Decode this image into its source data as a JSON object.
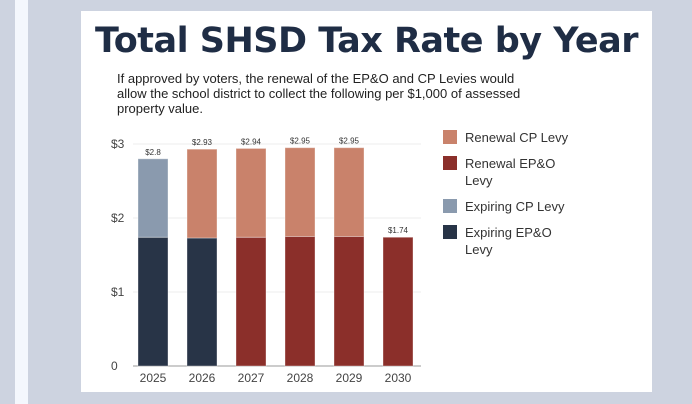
{
  "title": "Total SHSD Tax Rate by Year",
  "subtitle": "If approved by voters, the renewal of the EP&O and CP Levies would allow the school district to collect the following per $1,000 of assessed property value.",
  "chart_data": {
    "type": "bar",
    "stacked": true,
    "title": "Total SHSD Tax Rate by Year",
    "categories": [
      "2025",
      "2026",
      "2027",
      "2028",
      "2029",
      "2030"
    ],
    "ylim": [
      0,
      3
    ],
    "yticks": [
      {
        "v": 0,
        "label": "0"
      },
      {
        "v": 1,
        "label": "$1"
      },
      {
        "v": 2,
        "label": "$2"
      },
      {
        "v": 3,
        "label": "$3"
      }
    ],
    "grid": true,
    "legend": "right",
    "series": [
      {
        "name": "Expiring EP&O Levy",
        "color": "#283447",
        "values": [
          1.74,
          1.73,
          0,
          0,
          0,
          0
        ]
      },
      {
        "name": "Renewal EP&O Levy",
        "color": "#8b2f2a",
        "values": [
          0,
          0,
          1.74,
          1.75,
          1.75,
          1.74
        ]
      },
      {
        "name": "Expiring CP Levy",
        "color": "#8a9aae",
        "values": [
          1.06,
          0,
          0,
          0,
          0,
          0
        ]
      },
      {
        "name": "Renewal CP Levy",
        "color": "#c9826b",
        "values": [
          0,
          1.2,
          1.2,
          1.2,
          1.2,
          0
        ]
      }
    ],
    "totals": [
      "$2.8",
      "$2.93",
      "$2.94",
      "$2.95",
      "$2.95",
      "$1.74"
    ],
    "legend_order": [
      3,
      1,
      2,
      0
    ]
  }
}
